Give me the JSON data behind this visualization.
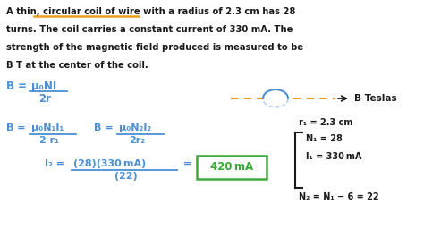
{
  "background_color": "#ffffff",
  "line1": "A thin, circular coil of wire with a radius of 2.3 cm has 28",
  "line2": "turns. The coil carries a constant current of 330 mA. The",
  "line3": "strength of the magnetic field produced is measured to be",
  "line4": "B T at the center of the coil.",
  "text_color": "#1a1a1a",
  "blue_color": "#4a8fd4",
  "green_color": "#3aaa3a",
  "orange_color": "#e8a020",
  "box_color": "#3aaa3a",
  "font_size_body": 7.2,
  "font_size_formula": 8.5,
  "font_size_small": 7.0
}
